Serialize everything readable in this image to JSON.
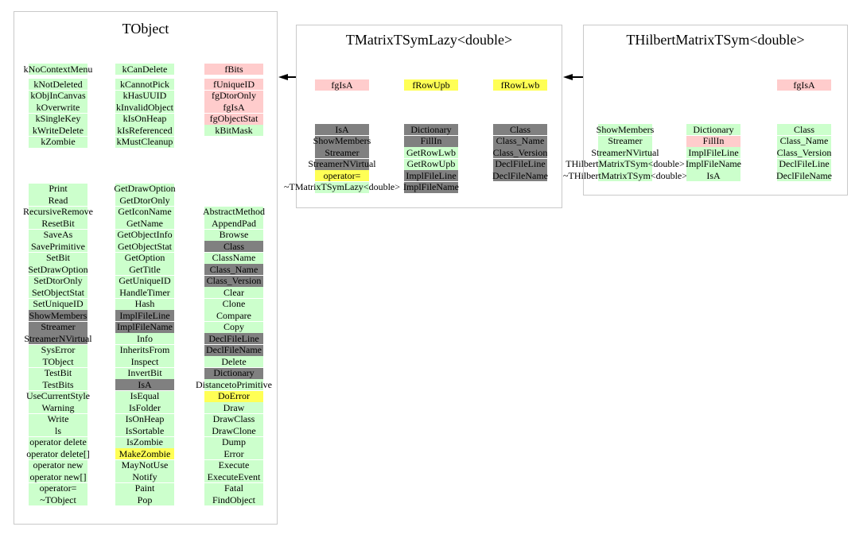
{
  "colors": {
    "green": "#ccffcc",
    "pink": "#ffcccc",
    "yellow": "#ffff55",
    "gray": "#808080"
  },
  "relations": [
    {
      "derived": "TMatrixTSymLazy<double>",
      "base": "TObject"
    },
    {
      "derived": "THilbertMatrixTSym<double>",
      "base": "TMatrixTSymLazy<double>"
    }
  ],
  "boxes": [
    {
      "title": "TObject",
      "fields_row": [
        {
          "label": "kNoContextMenu",
          "color": "green"
        },
        {
          "label": "kCanDelete",
          "color": "green"
        },
        {
          "label": "fBits",
          "color": "pink"
        }
      ],
      "fields_columns": [
        [
          {
            "label": "kNotDeleted",
            "color": "green"
          },
          {
            "label": "kObjInCanvas",
            "color": "green"
          },
          {
            "label": "kOverwrite",
            "color": "green"
          },
          {
            "label": "kSingleKey",
            "color": "green"
          },
          {
            "label": "kWriteDelete",
            "color": "green"
          },
          {
            "label": "kZombie",
            "color": "green"
          }
        ],
        [
          {
            "label": "kCannotPick",
            "color": "green"
          },
          {
            "label": "kHasUUID",
            "color": "green"
          },
          {
            "label": "kInvalidObject",
            "color": "green"
          },
          {
            "label": "kIsOnHeap",
            "color": "green"
          },
          {
            "label": "kIsReferenced",
            "color": "green"
          },
          {
            "label": "kMustCleanup",
            "color": "green"
          }
        ],
        [
          {
            "label": "fUniqueID",
            "color": "pink"
          },
          {
            "label": "fgDtorOnly",
            "color": "pink"
          },
          {
            "label": "fgIsA",
            "color": "pink"
          },
          {
            "label": "fgObjectStat",
            "color": "pink"
          },
          {
            "label": "kBitMask",
            "color": "green"
          }
        ]
      ],
      "methods_columns": [
        [
          {
            "label": "Print",
            "color": "green"
          },
          {
            "label": "Read",
            "color": "green"
          },
          {
            "label": "RecursiveRemove",
            "color": "green"
          },
          {
            "label": "ResetBit",
            "color": "green"
          },
          {
            "label": "SaveAs",
            "color": "green"
          },
          {
            "label": "SavePrimitive",
            "color": "green"
          },
          {
            "label": "SetBit",
            "color": "green"
          },
          {
            "label": "SetDrawOption",
            "color": "green"
          },
          {
            "label": "SetDtorOnly",
            "color": "green"
          },
          {
            "label": "SetObjectStat",
            "color": "green"
          },
          {
            "label": "SetUniqueID",
            "color": "green"
          },
          {
            "label": "ShowMembers",
            "color": "gray"
          },
          {
            "label": "Streamer",
            "color": "gray"
          },
          {
            "label": "StreamerNVirtual",
            "color": "gray"
          },
          {
            "label": "SysError",
            "color": "green"
          },
          {
            "label": "TObject",
            "color": "green"
          },
          {
            "label": "TestBit",
            "color": "green"
          },
          {
            "label": "TestBits",
            "color": "green"
          },
          {
            "label": "UseCurrentStyle",
            "color": "green"
          },
          {
            "label": "Warning",
            "color": "green"
          },
          {
            "label": "Write",
            "color": "green"
          },
          {
            "label": "ls",
            "color": "green"
          },
          {
            "label": "operator delete",
            "color": "green"
          },
          {
            "label": "operator delete[]",
            "color": "green"
          },
          {
            "label": "operator new",
            "color": "green"
          },
          {
            "label": "operator new[]",
            "color": "green"
          },
          {
            "label": "operator=",
            "color": "green"
          },
          {
            "label": "~TObject",
            "color": "green"
          }
        ],
        [
          {
            "label": "GetDrawOption",
            "color": "green"
          },
          {
            "label": "GetDtorOnly",
            "color": "green"
          },
          {
            "label": "GetIconName",
            "color": "green"
          },
          {
            "label": "GetName",
            "color": "green"
          },
          {
            "label": "GetObjectInfo",
            "color": "green"
          },
          {
            "label": "GetObjectStat",
            "color": "green"
          },
          {
            "label": "GetOption",
            "color": "green"
          },
          {
            "label": "GetTitle",
            "color": "green"
          },
          {
            "label": "GetUniqueID",
            "color": "green"
          },
          {
            "label": "HandleTimer",
            "color": "green"
          },
          {
            "label": "Hash",
            "color": "green"
          },
          {
            "label": "ImplFileLine",
            "color": "gray"
          },
          {
            "label": "ImplFileName",
            "color": "gray"
          },
          {
            "label": "Info",
            "color": "green"
          },
          {
            "label": "InheritsFrom",
            "color": "green"
          },
          {
            "label": "Inspect",
            "color": "green"
          },
          {
            "label": "InvertBit",
            "color": "green"
          },
          {
            "label": "IsA",
            "color": "gray"
          },
          {
            "label": "IsEqual",
            "color": "green"
          },
          {
            "label": "IsFolder",
            "color": "green"
          },
          {
            "label": "IsOnHeap",
            "color": "green"
          },
          {
            "label": "IsSortable",
            "color": "green"
          },
          {
            "label": "IsZombie",
            "color": "green"
          },
          {
            "label": "MakeZombie",
            "color": "yellow"
          },
          {
            "label": "MayNotUse",
            "color": "green"
          },
          {
            "label": "Notify",
            "color": "green"
          },
          {
            "label": "Paint",
            "color": "green"
          },
          {
            "label": "Pop",
            "color": "green"
          }
        ],
        [
          {
            "label": "AbstractMethod",
            "color": "green"
          },
          {
            "label": "AppendPad",
            "color": "green"
          },
          {
            "label": "Browse",
            "color": "green"
          },
          {
            "label": "Class",
            "color": "gray"
          },
          {
            "label": "ClassName",
            "color": "green"
          },
          {
            "label": "Class_Name",
            "color": "gray"
          },
          {
            "label": "Class_Version",
            "color": "gray"
          },
          {
            "label": "Clear",
            "color": "green"
          },
          {
            "label": "Clone",
            "color": "green"
          },
          {
            "label": "Compare",
            "color": "green"
          },
          {
            "label": "Copy",
            "color": "green"
          },
          {
            "label": "DeclFileLine",
            "color": "gray"
          },
          {
            "label": "DeclFileName",
            "color": "gray"
          },
          {
            "label": "Delete",
            "color": "green"
          },
          {
            "label": "Dictionary",
            "color": "gray"
          },
          {
            "label": "DistancetoPrimitive",
            "color": "green"
          },
          {
            "label": "DoError",
            "color": "yellow"
          },
          {
            "label": "Draw",
            "color": "green"
          },
          {
            "label": "DrawClass",
            "color": "green"
          },
          {
            "label": "DrawClone",
            "color": "green"
          },
          {
            "label": "Dump",
            "color": "green"
          },
          {
            "label": "Error",
            "color": "green"
          },
          {
            "label": "Execute",
            "color": "green"
          },
          {
            "label": "ExecuteEvent",
            "color": "green"
          },
          {
            "label": "Fatal",
            "color": "green"
          },
          {
            "label": "FindObject",
            "color": "green"
          }
        ]
      ]
    },
    {
      "title": "TMatrixTSymLazy<double>",
      "fields_row": [
        {
          "label": "fgIsA",
          "color": "pink"
        },
        {
          "label": "fRowUpb",
          "color": "yellow"
        },
        {
          "label": "fRowLwb",
          "color": "yellow"
        }
      ],
      "fields_columns": [
        [],
        [],
        []
      ],
      "methods_columns": [
        [
          {
            "label": "IsA",
            "color": "gray"
          },
          {
            "label": "ShowMembers",
            "color": "gray"
          },
          {
            "label": "Streamer",
            "color": "gray"
          },
          {
            "label": "StreamerNVirtual",
            "color": "gray"
          },
          {
            "label": "operator=",
            "color": "yellow"
          },
          {
            "label": "~TMatrixTSymLazy<double>",
            "color": "green"
          }
        ],
        [
          {
            "label": "Dictionary",
            "color": "gray"
          },
          {
            "label": "FillIn",
            "color": "gray"
          },
          {
            "label": "GetRowLwb",
            "color": "green"
          },
          {
            "label": "GetRowUpb",
            "color": "green"
          },
          {
            "label": "ImplFileLine",
            "color": "gray"
          },
          {
            "label": "ImplFileName",
            "color": "gray"
          }
        ],
        [
          {
            "label": "Class",
            "color": "gray"
          },
          {
            "label": "Class_Name",
            "color": "gray"
          },
          {
            "label": "Class_Version",
            "color": "gray"
          },
          {
            "label": "DeclFileLine",
            "color": "gray"
          },
          {
            "label": "DeclFileName",
            "color": "gray"
          }
        ]
      ]
    },
    {
      "title": "THilbertMatrixTSym<double>",
      "fields_row": [
        null,
        null,
        {
          "label": "fgIsA",
          "color": "pink"
        }
      ],
      "fields_columns": [
        [],
        [],
        []
      ],
      "methods_columns": [
        [
          {
            "label": "ShowMembers",
            "color": "green"
          },
          {
            "label": "Streamer",
            "color": "green"
          },
          {
            "label": "StreamerNVirtual",
            "color": "green"
          },
          {
            "label": "THilbertMatrixTSym<double>",
            "color": "green"
          },
          {
            "label": "~THilbertMatrixTSym<double>",
            "color": "green"
          }
        ],
        [
          {
            "label": "Dictionary",
            "color": "green"
          },
          {
            "label": "FillIn",
            "color": "pink"
          },
          {
            "label": "ImplFileLine",
            "color": "green"
          },
          {
            "label": "ImplFileName",
            "color": "green"
          },
          {
            "label": "IsA",
            "color": "green"
          }
        ],
        [
          {
            "label": "Class",
            "color": "green"
          },
          {
            "label": "Class_Name",
            "color": "green"
          },
          {
            "label": "Class_Version",
            "color": "green"
          },
          {
            "label": "DeclFileLine",
            "color": "green"
          },
          {
            "label": "DeclFileName",
            "color": "green"
          }
        ]
      ]
    }
  ]
}
